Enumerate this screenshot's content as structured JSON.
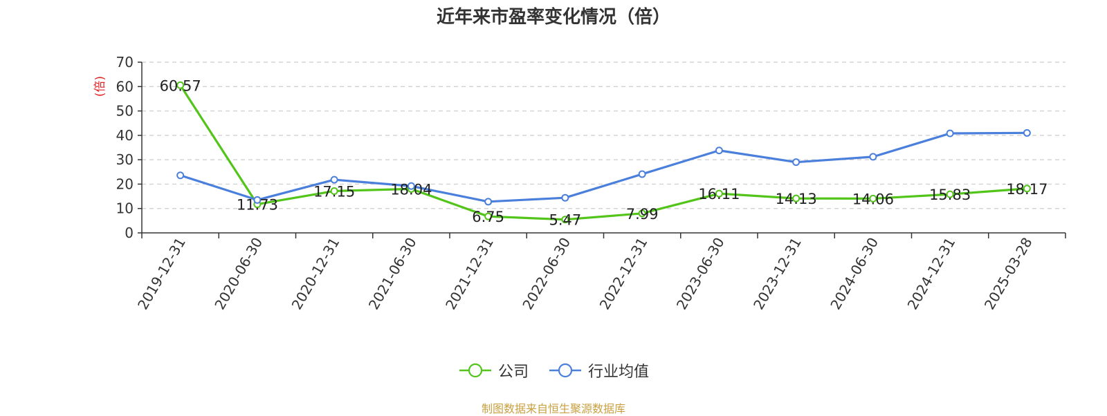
{
  "chart_data": {
    "type": "line",
    "title": "近年来市盈率变化情况（倍）",
    "ylabel": "(倍)",
    "xlabel": "",
    "ylim": [
      0,
      70
    ],
    "yticks": [
      0,
      10,
      20,
      30,
      40,
      50,
      60,
      70
    ],
    "categories": [
      "2019-12-31",
      "2020-06-30",
      "2020-12-31",
      "2021-06-30",
      "2021-12-31",
      "2022-06-30",
      "2022-12-31",
      "2023-06-30",
      "2023-12-31",
      "2024-06-30",
      "2024-12-31",
      "2025-03-28"
    ],
    "series": [
      {
        "name": "公司",
        "color": "#52c41a",
        "show_labels": true,
        "values": [
          60.57,
          11.73,
          17.15,
          18.04,
          6.75,
          5.47,
          7.99,
          16.11,
          14.13,
          14.06,
          15.83,
          18.17
        ],
        "labels": [
          "60.57",
          "11.73",
          "17.15",
          "18.04",
          "6.75",
          "5.47",
          "7.99",
          "16.11",
          "14.13",
          "14.06",
          "15.83",
          "18.17"
        ]
      },
      {
        "name": "行业均值",
        "color": "#4a7fdc",
        "show_labels": false,
        "values": [
          23.6,
          13.5,
          21.8,
          19.2,
          12.8,
          14.4,
          24.1,
          33.8,
          29.0,
          31.2,
          40.8,
          41.0
        ]
      }
    ],
    "grid": true,
    "legend_position": "bottom"
  },
  "footer": {
    "source": "制图数据来自恒生聚源数据库"
  }
}
